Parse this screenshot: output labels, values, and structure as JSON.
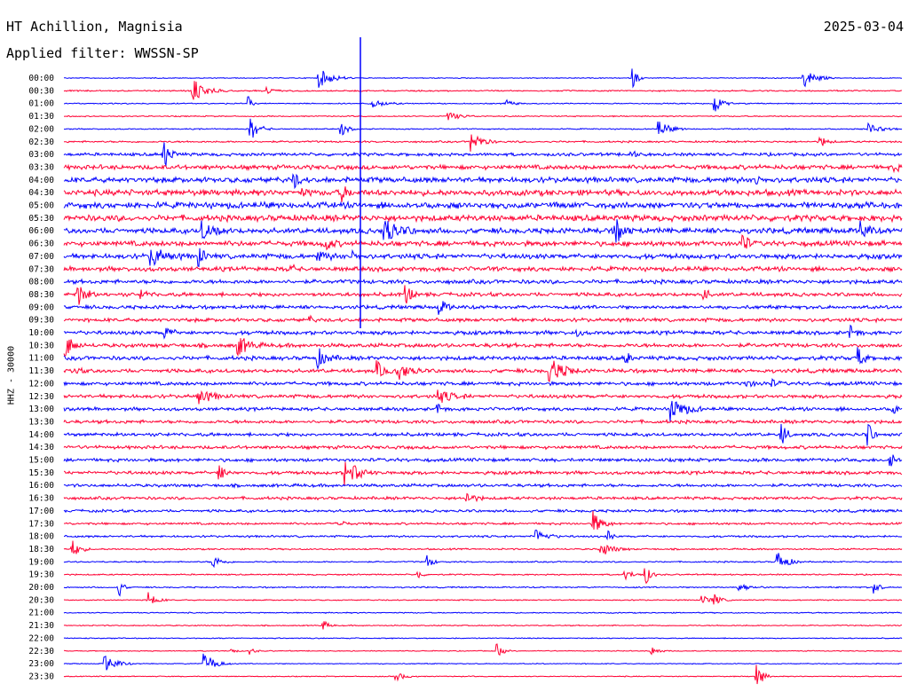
{
  "header": {
    "station": "HT Achillion, Magnisia",
    "date": "2025-03-04",
    "filter": "Applied filter: WWSSN-SP"
  },
  "channel_label": "HHZ - 30000",
  "chart_data": {
    "type": "line",
    "subtype": "helicorder",
    "row_labels": [
      "00:00",
      "00:30",
      "01:00",
      "01:30",
      "02:00",
      "02:30",
      "03:00",
      "03:30",
      "04:00",
      "04:30",
      "05:00",
      "05:30",
      "06:00",
      "06:30",
      "07:00",
      "07:30",
      "08:00",
      "08:30",
      "09:00",
      "09:30",
      "10:00",
      "10:30",
      "11:00",
      "11:30",
      "12:00",
      "12:30",
      "13:00",
      "13:30",
      "14:00",
      "14:30",
      "15:00",
      "15:30",
      "16:00",
      "16:30",
      "17:00",
      "17:30",
      "18:00",
      "18:30",
      "19:00",
      "19:30",
      "20:00",
      "20:30",
      "21:00",
      "21:30",
      "22:00",
      "22:30",
      "23:00",
      "23:30"
    ],
    "colors": [
      "#0000ff",
      "#ff0033"
    ],
    "noise_level": [
      0.4,
      0.6,
      0.5,
      0.5,
      0.5,
      0.8,
      1.4,
      2.0,
      2.4,
      2.6,
      2.7,
      2.7,
      2.4,
      2.3,
      2.2,
      2.0,
      1.8,
      1.7,
      1.6,
      1.6,
      1.7,
      1.8,
      1.8,
      1.7,
      1.6,
      1.6,
      1.5,
      1.5,
      1.5,
      1.5,
      1.5,
      1.5,
      1.4,
      1.3,
      1.2,
      1.0,
      0.9,
      0.7,
      0.6,
      0.6,
      0.6,
      0.5,
      0.5,
      0.5,
      0.45,
      0.4,
      0.4,
      0.4
    ]
  }
}
